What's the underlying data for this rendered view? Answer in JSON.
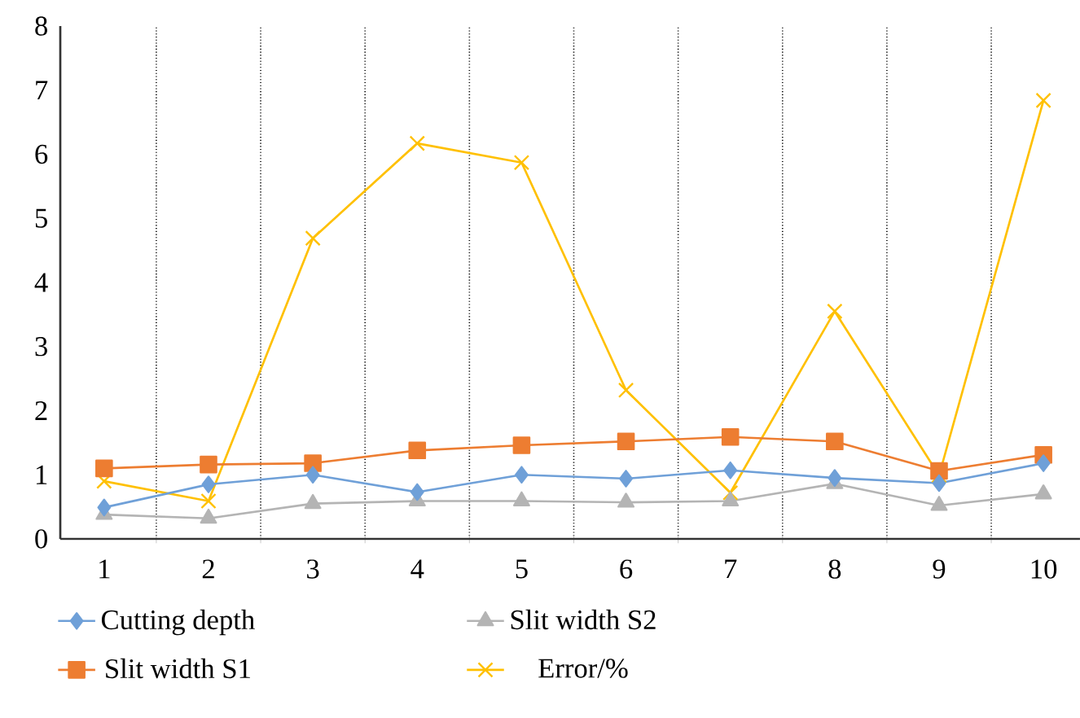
{
  "chart_data": {
    "type": "line",
    "categories": [
      "1",
      "2",
      "3",
      "4",
      "5",
      "6",
      "7",
      "8",
      "9",
      "10"
    ],
    "ylim": [
      0,
      8
    ],
    "yticks": [
      0,
      1,
      2,
      3,
      4,
      5,
      6,
      7,
      8
    ],
    "grid": "x",
    "legend": "bottom",
    "series": [
      {
        "name": "Cutting depth",
        "color": "#6fa0d8",
        "marker": "diamond",
        "values": [
          0.49,
          0.85,
          1.0,
          0.73,
          1.0,
          0.94,
          1.07,
          0.95,
          0.87,
          1.18
        ]
      },
      {
        "name": "Slit width S1",
        "color": "#ed7d31",
        "marker": "square",
        "values": [
          1.1,
          1.16,
          1.18,
          1.38,
          1.46,
          1.52,
          1.59,
          1.52,
          1.06,
          1.31
        ]
      },
      {
        "name": "Slit width S2",
        "color": "#b4b4b4",
        "marker": "triangle",
        "values": [
          0.38,
          0.32,
          0.55,
          0.59,
          0.59,
          0.57,
          0.59,
          0.86,
          0.52,
          0.7
        ]
      },
      {
        "name": "Error/%",
        "color": "#ffc000",
        "marker": "cross",
        "values": [
          0.9,
          0.59,
          4.69,
          6.17,
          5.87,
          2.32,
          0.72,
          3.55,
          0.99,
          6.84
        ]
      }
    ]
  }
}
